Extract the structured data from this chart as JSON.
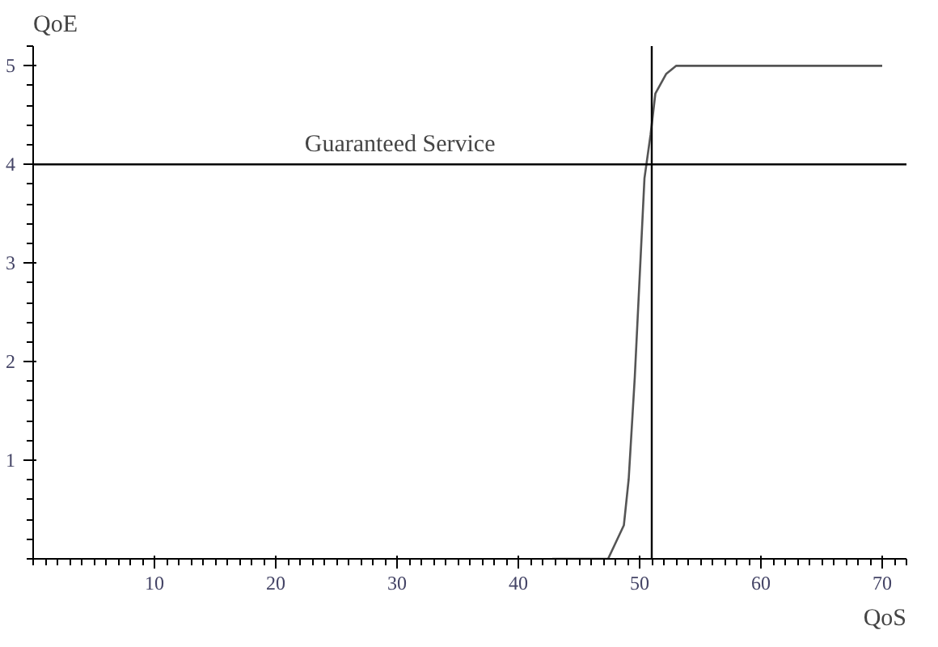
{
  "chart_data": {
    "type": "line",
    "xlabel": "QoS",
    "ylabel": "QoE",
    "x": [
      42.8,
      47.4,
      48.7,
      49.1,
      49.6,
      50.4,
      50.9,
      51.3,
      52.2,
      53.0,
      70.0
    ],
    "series": [
      {
        "color": "#555555",
        "values": [
          0,
          0,
          0.34,
          0.81,
          1.84,
          3.86,
          4.3,
          4.72,
          4.92,
          5.0,
          5.0
        ]
      }
    ],
    "xlim": [
      0,
      72
    ],
    "ylim": [
      0,
      5.2
    ],
    "xticks": [
      10,
      20,
      30,
      40,
      50,
      60,
      70
    ],
    "yticks": [
      1,
      2,
      3,
      4,
      5
    ],
    "ref_lines": [
      {
        "axis": "x",
        "value": 51,
        "label": null,
        "color": "#000000"
      },
      {
        "axis": "y",
        "value": 4,
        "label": "Guaranteed Service",
        "color": "#000000"
      }
    ],
    "grid": false,
    "marker": "none",
    "line_style": "solid"
  }
}
